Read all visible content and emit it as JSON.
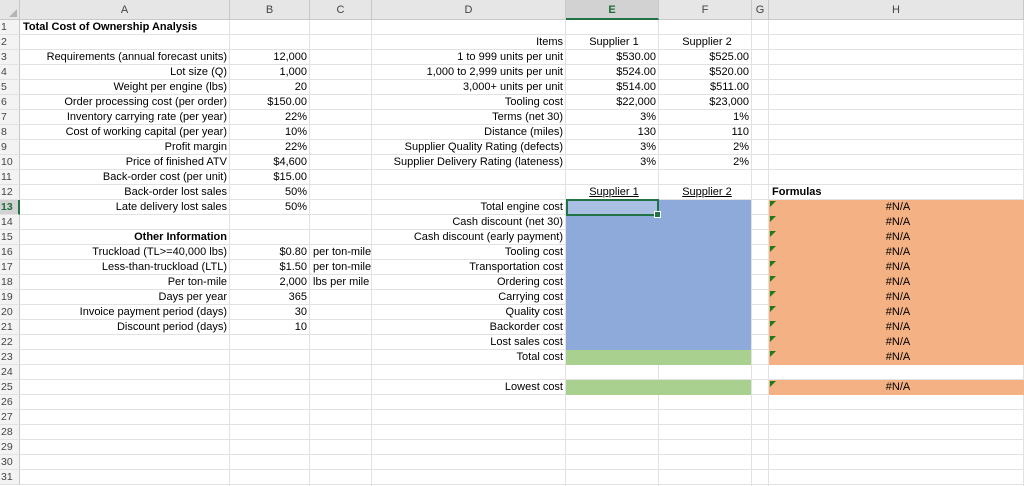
{
  "columns": [
    "A",
    "B",
    "C",
    "D",
    "E",
    "F",
    "G",
    "H"
  ],
  "rows": [
    "1",
    "2",
    "3",
    "4",
    "5",
    "6",
    "7",
    "8",
    "9",
    "10",
    "11",
    "12",
    "13",
    "14",
    "15",
    "16",
    "17",
    "18",
    "19",
    "20",
    "21",
    "22",
    "23",
    "24",
    "25",
    "26",
    "27",
    "28",
    "29",
    "30",
    "31"
  ],
  "title": "Total Cost of Ownership Analysis",
  "requirements": [
    {
      "label": "Requirements (annual forecast units)",
      "value": "12,000"
    },
    {
      "label": "Lot size (Q)",
      "value": "1,000"
    },
    {
      "label": "Weight per engine (lbs)",
      "value": "20"
    },
    {
      "label": "Order processing cost (per order)",
      "value": "$150.00"
    },
    {
      "label": "Inventory carrying rate (per year)",
      "value": "22%"
    },
    {
      "label": "Cost of working capital (per year)",
      "value": "10%"
    },
    {
      "label": "Profit margin",
      "value": "22%"
    },
    {
      "label": "Price of finished ATV",
      "value": "$4,600"
    },
    {
      "label": "Back-order cost (per unit)",
      "value": "$15.00"
    },
    {
      "label": "Back-order lost sales",
      "value": "50%"
    },
    {
      "label": "Late delivery lost sales",
      "value": "50%"
    }
  ],
  "other_info": {
    "heading": "Other Information",
    "rows": [
      {
        "label": "Truckload (TL>=40,000 lbs)",
        "value": "$0.80",
        "unit": "per ton-mile"
      },
      {
        "label": "Less-than-truckload (LTL)",
        "value": "$1.50",
        "unit": "per ton-mile"
      },
      {
        "label": "Per ton-mile",
        "value": "2,000",
        "unit": "lbs per mile"
      },
      {
        "label": "Days per year",
        "value": "365",
        "unit": ""
      },
      {
        "label": "Invoice payment period (days)",
        "value": "30",
        "unit": ""
      },
      {
        "label": "Discount period (days)",
        "value": "10",
        "unit": ""
      }
    ]
  },
  "items_table": {
    "header": {
      "items": "Items",
      "s1": "Supplier 1",
      "s2": "Supplier 2"
    },
    "rows": [
      {
        "label": "1 to 999 units per unit",
        "s1": "$530.00",
        "s2": "$525.00"
      },
      {
        "label": "1,000 to 2,999 units per unit",
        "s1": "$524.00",
        "s2": "$520.00"
      },
      {
        "label": "3,000+ units per unit",
        "s1": "$514.00",
        "s2": "$511.00"
      },
      {
        "label": "Tooling cost",
        "s1": "$22,000",
        "s2": "$23,000"
      },
      {
        "label": "Terms (net 30)",
        "s1": "3%",
        "s2": "1%"
      },
      {
        "label": "Distance (miles)",
        "s1": "130",
        "s2": "110"
      },
      {
        "label": "Supplier Quality Rating (defects)",
        "s1": "3%",
        "s2": "2%"
      },
      {
        "label": "Supplier Delivery Rating (lateness)",
        "s1": "3%",
        "s2": "2%"
      }
    ]
  },
  "cost_table": {
    "header": {
      "s1": "Supplier 1",
      "s2": "Supplier 2",
      "formulas": "Formulas"
    },
    "rows": [
      {
        "label": "Total engine cost",
        "formula": "#N/A"
      },
      {
        "label": "Cash discount (net 30)",
        "formula": "#N/A"
      },
      {
        "label": "Cash discount (early payment)",
        "formula": "#N/A"
      },
      {
        "label": "Tooling cost",
        "formula": "#N/A"
      },
      {
        "label": "Transportation cost",
        "formula": "#N/A"
      },
      {
        "label": "Ordering cost",
        "formula": "#N/A"
      },
      {
        "label": "Carrying cost",
        "formula": "#N/A"
      },
      {
        "label": "Quality cost",
        "formula": "#N/A"
      },
      {
        "label": "Backorder cost",
        "formula": "#N/A"
      },
      {
        "label": "Lost sales cost",
        "formula": "#N/A"
      },
      {
        "label": "Total cost",
        "formula": "#N/A"
      }
    ],
    "lowest": {
      "label": "Lowest cost",
      "formula": "#N/A"
    }
  },
  "colors": {
    "blue_fill": "#8eaadb",
    "green_fill": "#a9d08e",
    "orange_fill": "#f4b183",
    "selection": "#217346",
    "error_triangle": "#1f7a1f"
  },
  "active_cell": "E13"
}
